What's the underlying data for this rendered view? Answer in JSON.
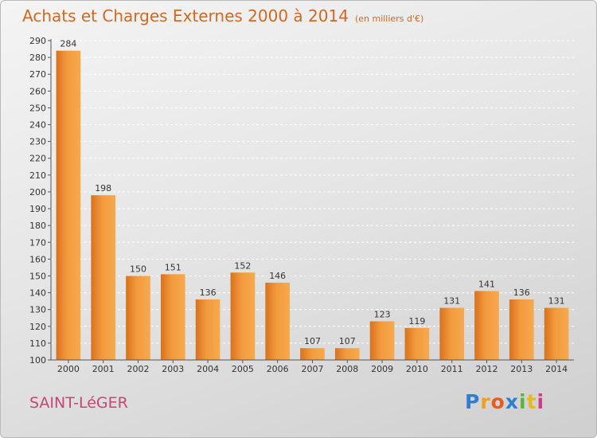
{
  "title": "Achats et Charges Externes 2000 à 2014",
  "unit": "(en milliers d'€)",
  "commune": "SAINT-LéGER",
  "logo": {
    "letters": [
      "P",
      "r",
      "o",
      "x",
      "i",
      "t",
      "i"
    ],
    "colors": [
      "#2f7fd1",
      "#f0a020",
      "#e85a20",
      "#2f7fd1",
      "#5ab63a",
      "#e8b820",
      "#d23a8a"
    ]
  },
  "colors": {
    "bar": "#f39a3e",
    "bar_dark": "#d8721e",
    "axis": "#555555",
    "grid": "#ffffff",
    "title": "#d2691e",
    "commune": "#c84673"
  },
  "chart_data": {
    "type": "bar",
    "title": "Achats et Charges Externes 2000 à 2014",
    "unit": "(en milliers d'€)",
    "categories": [
      "2000",
      "2001",
      "2002",
      "2003",
      "2004",
      "2005",
      "2006",
      "2007",
      "2008",
      "2009",
      "2010",
      "2011",
      "2012",
      "2013",
      "2014"
    ],
    "values": [
      284,
      198,
      150,
      151,
      136,
      152,
      146,
      107,
      107,
      123,
      119,
      131,
      141,
      136,
      131
    ],
    "ylim": [
      100,
      290
    ],
    "yticks": [
      100,
      110,
      120,
      130,
      140,
      150,
      160,
      170,
      180,
      190,
      200,
      210,
      220,
      230,
      240,
      250,
      260,
      270,
      280,
      290
    ],
    "grid": true,
    "data_labels": true
  }
}
